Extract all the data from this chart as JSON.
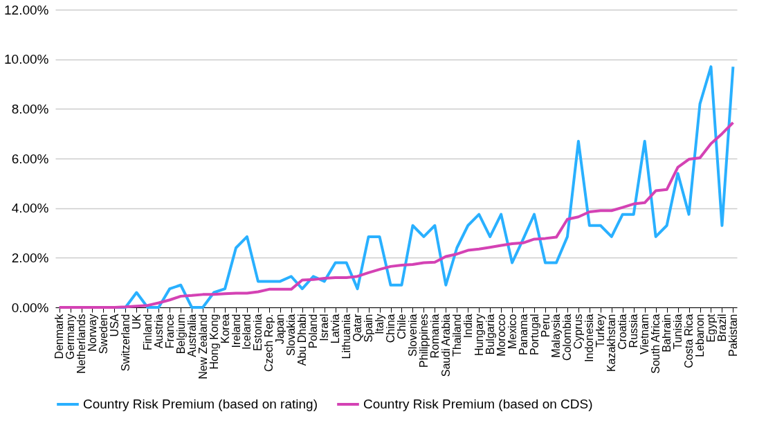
{
  "chart_data": {
    "type": "line",
    "categories": [
      "Denmark",
      "Germany",
      "Netherlands",
      "Norway",
      "Sweden",
      "USA",
      "Switzerland",
      "UK",
      "Finland",
      "Austria",
      "France",
      "Belgium",
      "Australia",
      "New Zealand",
      "Hong Kong",
      "Korea",
      "Ireland",
      "Iceland",
      "Estonia",
      "Czech Rep.",
      "Japan",
      "Slovakia",
      "Abu Dhabi",
      "Poland",
      "Israel",
      "Latvia",
      "Lithuania",
      "Qatar",
      "Spain",
      "Italy",
      "China",
      "Chile",
      "Slovenia",
      "Philippines",
      "Romania",
      "Saudi Arabia",
      "Thailand",
      "India",
      "Hungary",
      "Bulgaria",
      "Morocco",
      "Mexico",
      "Panama",
      "Portugal",
      "Peru",
      "Malaysia",
      "Colombia",
      "Cyprus",
      "Indonesia",
      "Turkey",
      "Kazakhstan",
      "Croatia",
      "Russia",
      "Vietnam",
      "South Africa",
      "Bahrain",
      "Tunisia",
      "Costa Rica",
      "Lebanon",
      "Egypt",
      "Brazil",
      "Pakistan"
    ],
    "series": [
      {
        "name": "Country Risk Premium (based on rating)",
        "color": "#29b0ff",
        "values": [
          null,
          null,
          null,
          null,
          null,
          0,
          0,
          0.6,
          0,
          0,
          0.75,
          0.9,
          0,
          0,
          0.6,
          0.75,
          2.4,
          2.85,
          1.05,
          1.05,
          1.05,
          1.25,
          0.75,
          1.25,
          1.05,
          1.8,
          1.8,
          0.75,
          2.85,
          2.85,
          0.9,
          0.9,
          3.3,
          2.85,
          3.3,
          0.9,
          2.4,
          3.3,
          3.75,
          2.85,
          3.75,
          1.8,
          2.75,
          3.75,
          1.8,
          1.8,
          2.85,
          6.7,
          3.3,
          3.3,
          2.85,
          3.75,
          3.75,
          6.7,
          2.85,
          3.3,
          5.4,
          3.75,
          8.2,
          9.7,
          3.3,
          9.7
        ]
      },
      {
        "name": "Country Risk Premium (based on CDS)",
        "color": "#d442b4",
        "values": [
          0,
          0,
          0,
          0,
          0,
          0,
          0.02,
          0.05,
          0.08,
          0.18,
          0.3,
          0.45,
          0.48,
          0.52,
          0.52,
          0.55,
          0.57,
          0.57,
          0.63,
          0.73,
          0.73,
          0.73,
          1.1,
          1.12,
          1.17,
          1.2,
          1.2,
          1.25,
          1.4,
          1.53,
          1.65,
          1.7,
          1.73,
          1.8,
          1.82,
          2.05,
          2.15,
          2.3,
          2.35,
          2.42,
          2.5,
          2.57,
          2.6,
          2.75,
          2.78,
          2.83,
          3.55,
          3.65,
          3.85,
          3.9,
          3.9,
          4.03,
          4.17,
          4.22,
          4.7,
          4.75,
          5.65,
          5.97,
          6.03,
          6.6,
          7.0,
          7.45
        ]
      }
    ],
    "ylim": [
      0,
      12
    ],
    "yticks": [
      {
        "value": 0,
        "label": "0.00%"
      },
      {
        "value": 2,
        "label": "2.00%"
      },
      {
        "value": 4,
        "label": "4.00%"
      },
      {
        "value": 6,
        "label": "6.00%"
      },
      {
        "value": 8,
        "label": "8.00%"
      },
      {
        "value": 10,
        "label": "10.00%"
      },
      {
        "value": 12,
        "label": "12.00%"
      }
    ],
    "grid": "y",
    "legend": "bottom",
    "marker": "none",
    "line_style": "solid"
  }
}
